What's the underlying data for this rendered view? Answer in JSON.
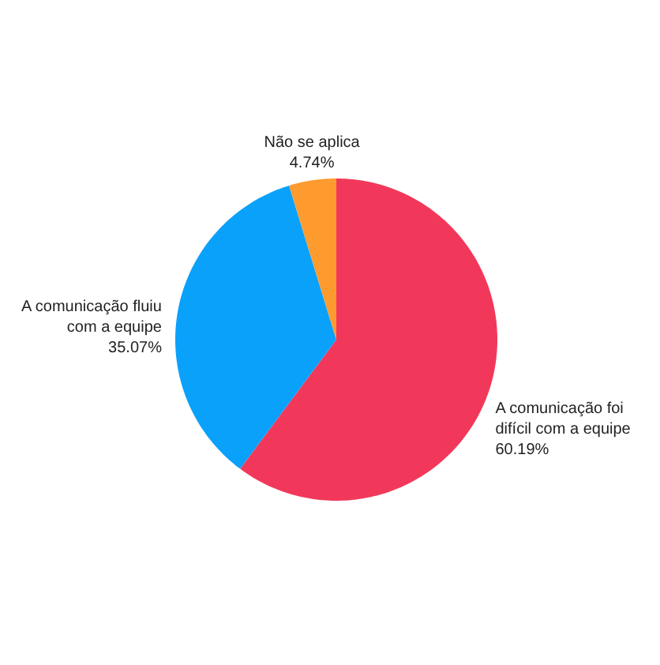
{
  "chart_data": {
    "type": "pie",
    "categories": [
      "A comunicação foi\ndifícil  com a equipe",
      "A comunicação fluiu\ncom a equipe",
      "Não se aplica"
    ],
    "values": [
      60.19,
      35.07,
      4.74
    ],
    "value_labels": [
      "60.19%",
      "35.07%",
      "4.74%"
    ],
    "colors": [
      "#f2385a",
      "#0aa1fb",
      "#fd9b2f"
    ]
  }
}
